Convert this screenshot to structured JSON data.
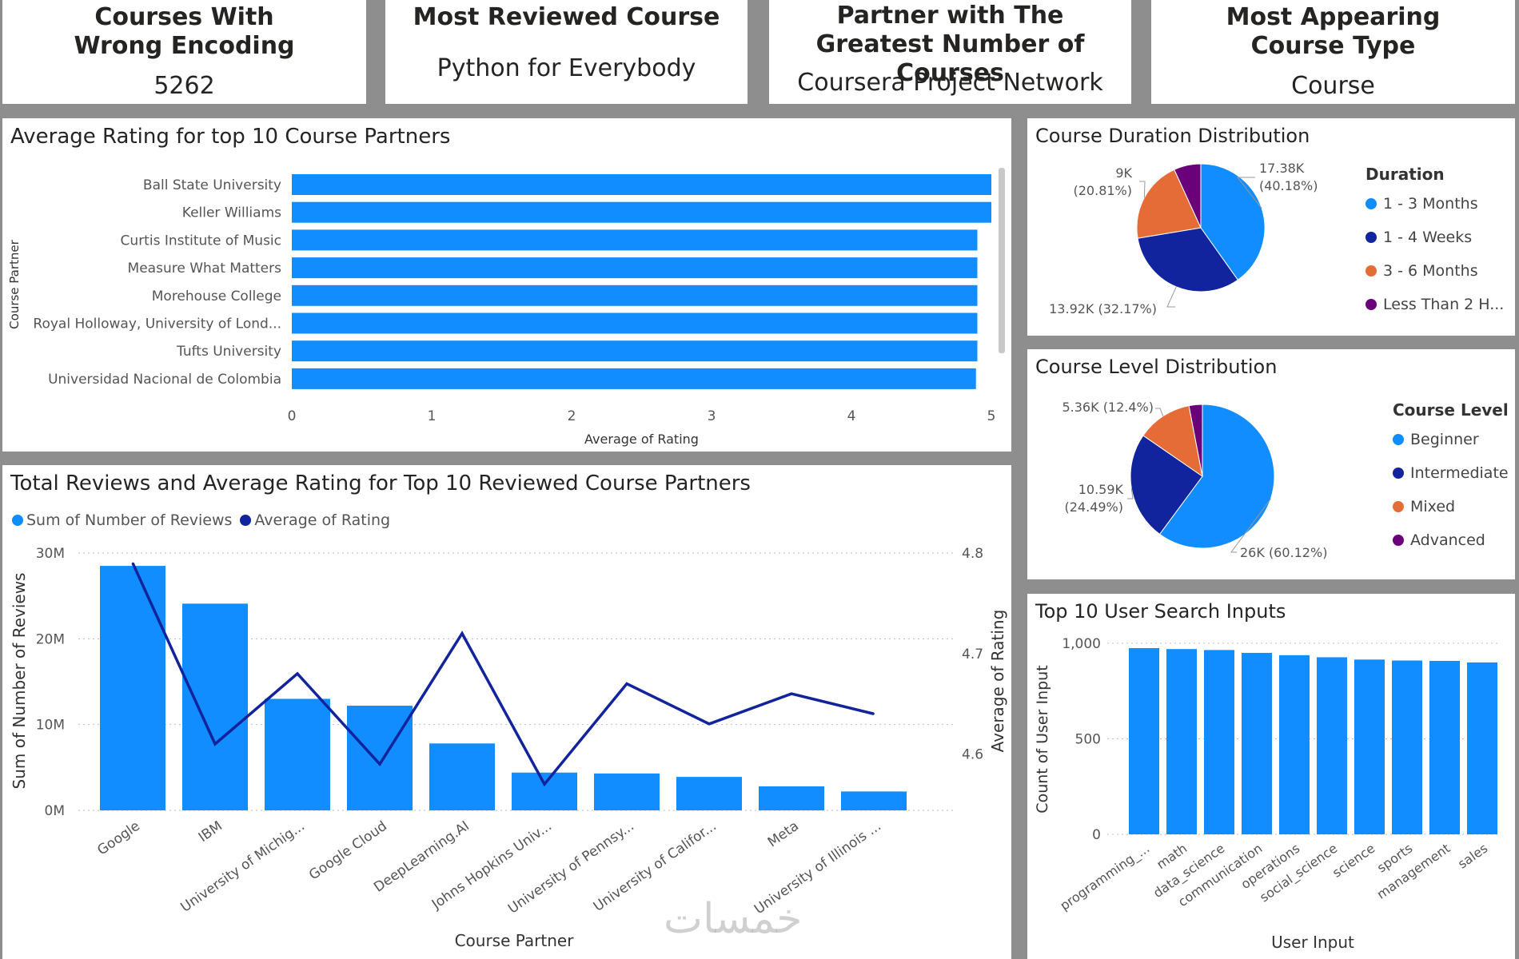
{
  "kpis": [
    {
      "title": "Courses With Wrong Encoding",
      "value": "5262"
    },
    {
      "title": "Most Reviewed Course",
      "value": "Python for Everybody"
    },
    {
      "title": "Partner with The Greatest Number of Courses",
      "value": "Coursera Project Network"
    },
    {
      "title": "Most Appearing Course Type",
      "value": "Course"
    }
  ],
  "colors": {
    "primary": "#118dff",
    "dark_blue": "#12239e",
    "orange": "#e66c37",
    "purple": "#6b007b",
    "background": "#8e8e8e"
  },
  "watermark": "خمسات",
  "chart_data": [
    {
      "id": "avg_rating_partners",
      "type": "bar",
      "orientation": "horizontal",
      "title": "Average Rating for top 10 Course Partners",
      "categories": [
        "Ball State University",
        "Keller Williams",
        "Curtis Institute of Music",
        "Measure What Matters",
        "Morehouse College",
        "Royal Holloway, University of Lond...",
        "Tufts University",
        "Universidad Nacional de Colombia"
      ],
      "values": [
        5.0,
        5.0,
        4.9,
        4.9,
        4.9,
        4.9,
        4.9,
        4.89
      ],
      "xlabel": "Average of Rating",
      "ylabel": "Course Partner",
      "xlim": [
        0,
        5
      ],
      "xticks": [
        "0",
        "1",
        "2",
        "3",
        "4",
        "5"
      ]
    },
    {
      "id": "reviews_rating_combo",
      "type": "bar",
      "title": "Total Reviews and Average Rating for Top 10 Reviewed Course Partners",
      "categories": [
        "Google",
        "IBM",
        "University of Michig...",
        "Google Cloud",
        "DeepLearning.AI",
        "Johns Hopkins Univ...",
        "University of Pennsy...",
        "University of Califor...",
        "Meta",
        "University of Illinois ..."
      ],
      "series": [
        {
          "name": "Sum of Number of Reviews",
          "type": "bar",
          "axis": "left",
          "values": [
            28.5,
            24.1,
            13.0,
            12.2,
            7.8,
            4.4,
            4.3,
            3.9,
            2.8,
            2.2
          ]
        },
        {
          "name": "Average of Rating",
          "type": "line",
          "axis": "right",
          "values": [
            4.79,
            4.61,
            4.68,
            4.59,
            4.72,
            4.57,
            4.67,
            4.63,
            4.66,
            4.64
          ]
        }
      ],
      "xlabel": "Course Partner",
      "ylabel": "Sum of Number of Reviews",
      "ylabel_right": "Average of Rating",
      "ylim": [
        0,
        30
      ],
      "yticks": [
        "0M",
        "10M",
        "20M",
        "30M"
      ],
      "ylim_right": [
        4.544,
        4.8
      ],
      "yticks_right": [
        "4.6",
        "4.7",
        "4.8"
      ]
    },
    {
      "id": "duration_pie",
      "type": "pie",
      "title": "Course Duration Distribution",
      "legend_title": "Duration",
      "slices": [
        {
          "label": "1 - 3 Months",
          "value": 17.38,
          "text1": "17.38K",
          "text2": "(40.18%)"
        },
        {
          "label": "1 - 4 Weeks",
          "value": 13.92,
          "text1": "13.92K (32.17%)",
          "text2": ""
        },
        {
          "label": "3 - 6 Months",
          "value": 9.0,
          "text1": "9K",
          "text2": "(20.81%)"
        },
        {
          "label": "Less Than 2 H...",
          "value": 2.95,
          "text1": "",
          "text2": ""
        }
      ]
    },
    {
      "id": "level_pie",
      "type": "pie",
      "title": "Course Level Distribution",
      "legend_title": "Course Level",
      "slices": [
        {
          "label": "Beginner",
          "value": 26.0,
          "text1": "26K (60.12%)",
          "text2": ""
        },
        {
          "label": "Intermediate",
          "value": 10.59,
          "text1": "10.59K",
          "text2": "(24.49%)"
        },
        {
          "label": "Mixed",
          "value": 5.36,
          "text1": "5.36K (12.4%)",
          "text2": ""
        },
        {
          "label": "Advanced",
          "value": 1.3,
          "text1": "",
          "text2": ""
        }
      ]
    },
    {
      "id": "search_inputs",
      "type": "bar",
      "title": "Top 10 User Search Inputs",
      "categories": [
        "programming_...",
        "math",
        "data_science",
        "communication",
        "operations",
        "social_science",
        "science",
        "sports",
        "management",
        "sales"
      ],
      "values": [
        975,
        970,
        965,
        950,
        938,
        927,
        915,
        910,
        908,
        900
      ],
      "xlabel": "User Input",
      "ylabel": "Count of User Input",
      "ylim": [
        0,
        1000
      ],
      "yticks": [
        "0",
        "500",
        "1,000"
      ]
    }
  ]
}
